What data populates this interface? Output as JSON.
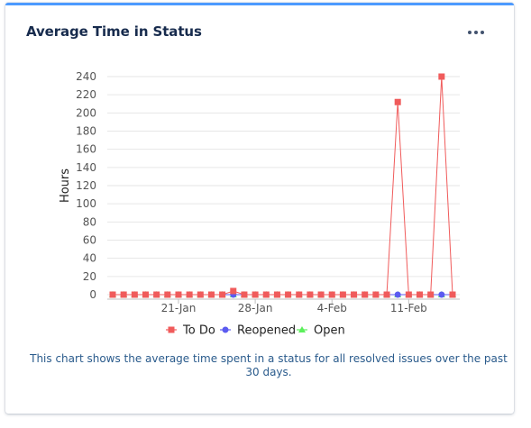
{
  "card": {
    "title": "Average Time in Status",
    "description": "This chart shows the average time spent in a status for all resolved issues over the past 30 days."
  },
  "icons": {
    "more": "more-horizontal-icon"
  },
  "colors": {
    "todo": "#f05b5b",
    "reopened": "#5b5bf0",
    "open": "#5bf05b",
    "grid": "#e6e6e6",
    "axis_text": "#555555",
    "header_accent": "#4c9aff"
  },
  "chart_data": {
    "type": "line",
    "title": "",
    "xlabel": "",
    "ylabel": "Hours",
    "ylim": [
      0,
      240
    ],
    "yticks": [
      0,
      20,
      40,
      60,
      80,
      100,
      120,
      140,
      160,
      180,
      200,
      220,
      240
    ],
    "x": [
      "15-Jan",
      "16-Jan",
      "17-Jan",
      "18-Jan",
      "19-Jan",
      "20-Jan",
      "21-Jan",
      "22-Jan",
      "23-Jan",
      "24-Jan",
      "25-Jan",
      "26-Jan",
      "27-Jan",
      "28-Jan",
      "29-Jan",
      "30-Jan",
      "31-Jan",
      "1-Feb",
      "2-Feb",
      "3-Feb",
      "4-Feb",
      "5-Feb",
      "6-Feb",
      "7-Feb",
      "8-Feb",
      "9-Feb",
      "10-Feb",
      "11-Feb",
      "12-Feb",
      "13-Feb",
      "14-Feb",
      "15-Feb"
    ],
    "xtick_labels": [
      "21-Jan",
      "28-Jan",
      "4-Feb",
      "11-Feb"
    ],
    "grid": true,
    "legend_position": "bottom",
    "series": [
      {
        "name": "To Do",
        "marker": "square",
        "values": [
          0,
          0,
          0,
          0,
          0,
          0,
          0,
          0,
          0,
          0,
          0,
          4,
          0,
          0,
          0,
          0,
          0,
          0,
          0,
          0,
          0,
          0,
          0,
          0,
          0,
          0,
          212,
          0,
          0,
          0,
          240,
          0
        ]
      },
      {
        "name": "Reopened",
        "marker": "circle",
        "values": [
          0,
          0,
          0,
          0,
          0,
          0,
          0,
          0,
          0,
          0,
          0,
          0,
          0,
          0,
          0,
          0,
          0,
          0,
          0,
          0,
          0,
          0,
          0,
          0,
          0,
          0,
          0,
          0,
          0,
          0,
          0,
          0
        ]
      },
      {
        "name": "Open",
        "marker": "triangle",
        "values": [
          0,
          0,
          0,
          0,
          0,
          0,
          0,
          0,
          0,
          0,
          0,
          0,
          0,
          0,
          0,
          0,
          0,
          0,
          0,
          0,
          0,
          0,
          0,
          0,
          0,
          0,
          0,
          0,
          0,
          0,
          0,
          0
        ]
      }
    ]
  }
}
